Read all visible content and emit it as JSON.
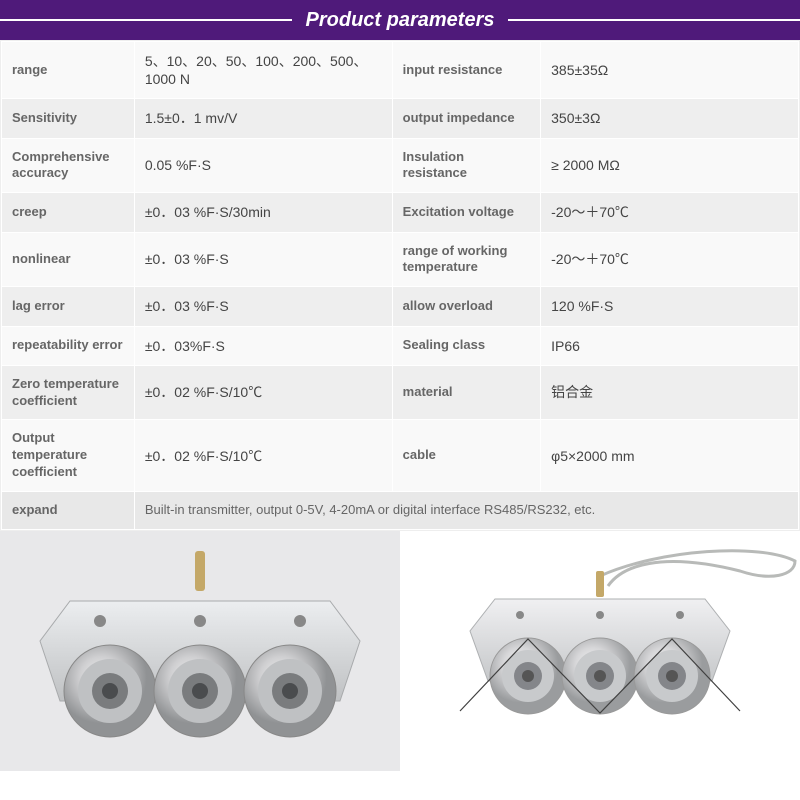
{
  "header": {
    "title": "Product parameters",
    "bg_color": "#4f1a7a",
    "line_color": "#ffffff",
    "title_color": "#ffffff",
    "title_fontsize": 20
  },
  "table": {
    "colors": {
      "row_alt_bg": "#eeeeee",
      "row_reg_bg": "#f9f9f9",
      "border": "#ffffff",
      "label_color": "#666666",
      "value_color": "#444444",
      "label_fontsize": 13,
      "value_fontsize": 14
    },
    "rows": [
      {
        "l1": "range",
        "v1": "5、10、20、50、100、200、500、1000 N",
        "l2": "input resistance",
        "v2": "385±35Ω",
        "alt": false
      },
      {
        "l1": "Sensitivity",
        "v1": "1.5±0．1 mv/V",
        "l2": "output impedance",
        "v2": "350±3Ω",
        "alt": true
      },
      {
        "l1": "Comprehensive accuracy",
        "v1": "0.05 %F·S",
        "l2": "Insulation resistance",
        "v2": "≥ 2000 MΩ",
        "alt": false
      },
      {
        "l1": "creep",
        "v1": "±0．03 %F·S/30min",
        "l2": "Excitation voltage",
        "v2": "-20～＋70℃",
        "alt": true
      },
      {
        "l1": "nonlinear",
        "v1": "±0．03 %F·S",
        "l2": "range of working temperature",
        "v2": "-20～＋70℃",
        "alt": false
      },
      {
        "l1": "lag error",
        "v1": "±0．03 %F·S",
        "l2": "allow overload",
        "v2": "120 %F·S",
        "alt": true
      },
      {
        "l1": "repeatability error",
        "v1": "±0．03%F·S",
        "l2": "Sealing class",
        "v2": "IP66",
        "alt": false
      },
      {
        "l1": "Zero temperature coefficient",
        "v1": "±0．02 %F·S/10℃",
        "l2": "material",
        "v2": "铝合金",
        "alt": true
      },
      {
        "l1": "Output temperature coefficient",
        "v1": "±0．02 %F·S/10℃",
        "l2": "cable",
        "v2": "φ5×2000 mm",
        "alt": false
      }
    ],
    "expand": {
      "label": "expand",
      "value": "Built-in transmitter, output 0-5V, 4-20mA or digital interface RS485/RS232, etc."
    }
  },
  "sensor": {
    "body_color": "#d4d6d8",
    "body_highlight": "#eceef0",
    "wheel_outer": "#c8cacc",
    "wheel_inner": "#9a9c9e",
    "wheel_center": "#606264",
    "cable_color": "#b8bab8",
    "connector_color": "#c4a868"
  }
}
